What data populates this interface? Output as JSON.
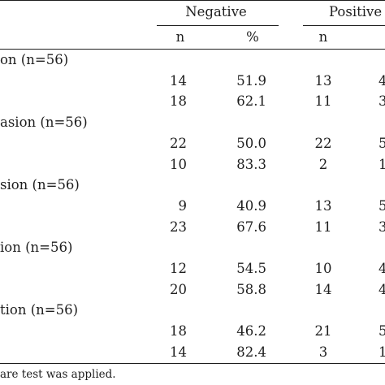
{
  "header": {
    "group_negative": "Negative",
    "group_positive": "Positive",
    "col_n": "n",
    "col_pct": "%"
  },
  "rows": [
    {
      "label": "on (n=56)"
    },
    {
      "neg_n": "14",
      "neg_pct": "51.9",
      "pos_n": "13",
      "pos_pct": "4"
    },
    {
      "neg_n": "18",
      "neg_pct": "62.1",
      "pos_n": "11",
      "pos_pct": "3"
    },
    {
      "label": "asion (n=56)"
    },
    {
      "neg_n": "22",
      "neg_pct": "50.0",
      "pos_n": "22",
      "pos_pct": "5"
    },
    {
      "neg_n": "10",
      "neg_pct": "83.3",
      "pos_n": "2",
      "pos_pct": "1"
    },
    {
      "label": "sion (n=56)"
    },
    {
      "neg_n": "9",
      "neg_pct": "40.9",
      "pos_n": "13",
      "pos_pct": "5"
    },
    {
      "neg_n": "23",
      "neg_pct": "67.6",
      "pos_n": "11",
      "pos_pct": "3"
    },
    {
      "label": "ion (n=56)"
    },
    {
      "neg_n": "12",
      "neg_pct": "54.5",
      "pos_n": "10",
      "pos_pct": "4"
    },
    {
      "neg_n": "20",
      "neg_pct": "58.8",
      "pos_n": "14",
      "pos_pct": "4"
    },
    {
      "label": "tion (n=56)"
    },
    {
      "neg_n": "18",
      "neg_pct": "46.2",
      "pos_n": "21",
      "pos_pct": "5"
    },
    {
      "neg_n": "14",
      "neg_pct": "82.4",
      "pos_n": "3",
      "pos_pct": "1"
    }
  ],
  "footnote": "are test was applied."
}
